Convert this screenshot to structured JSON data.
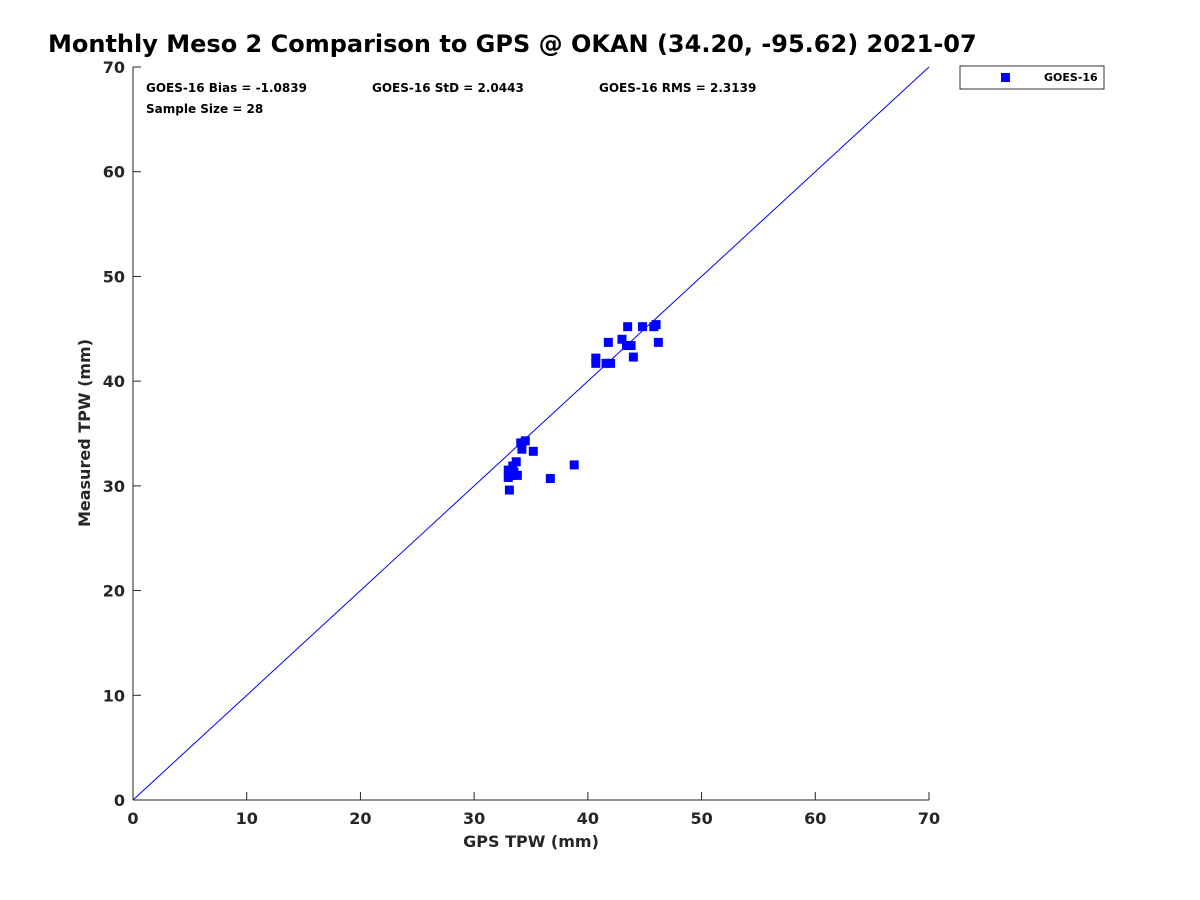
{
  "chart_data": {
    "type": "scatter",
    "title": "Monthly Meso 2 Comparison to GPS @ OKAN (34.20, -95.62) 2021-07",
    "xlabel": "GPS TPW (mm)",
    "ylabel": "Measured TPW (mm)",
    "xlim": [
      0,
      70
    ],
    "ylim": [
      0,
      70
    ],
    "xticks": [
      "0",
      "10",
      "20",
      "30",
      "40",
      "50",
      "60",
      "70"
    ],
    "yticks": [
      "0",
      "10",
      "20",
      "30",
      "40",
      "50",
      "60",
      "70"
    ],
    "grid": false,
    "legend_position": "top-right, outside plot",
    "reference_line": {
      "name": "1:1 line",
      "x": [
        0,
        70
      ],
      "y": [
        0,
        70
      ],
      "color": "#0000ff"
    },
    "stats": {
      "bias": "GOES-16 Bias = -1.0839",
      "std": "GOES-16 StD = 2.0443",
      "rms": "GOES-16 RMS = 2.3139",
      "sample": "Sample Size = 28"
    },
    "series": [
      {
        "name": "GOES-16",
        "color": "#0000ff",
        "marker": "square",
        "points": [
          [
            33.1,
            29.6
          ],
          [
            33.0,
            30.8
          ],
          [
            33.3,
            31.0
          ],
          [
            33.5,
            31.3
          ],
          [
            33.8,
            31.0
          ],
          [
            33.0,
            31.5
          ],
          [
            33.4,
            31.9
          ],
          [
            33.7,
            32.3
          ],
          [
            34.2,
            33.5
          ],
          [
            35.2,
            33.3
          ],
          [
            34.1,
            34.1
          ],
          [
            34.5,
            34.3
          ],
          [
            36.7,
            30.7
          ],
          [
            38.8,
            32.0
          ],
          [
            40.7,
            41.7
          ],
          [
            40.7,
            42.2
          ],
          [
            41.6,
            41.7
          ],
          [
            42.0,
            41.7
          ],
          [
            41.8,
            43.7
          ],
          [
            43.0,
            44.0
          ],
          [
            43.4,
            43.4
          ],
          [
            43.8,
            43.4
          ],
          [
            44.0,
            42.3
          ],
          [
            43.5,
            45.2
          ],
          [
            44.8,
            45.2
          ],
          [
            45.8,
            45.2
          ],
          [
            46.0,
            45.4
          ],
          [
            46.2,
            43.7
          ]
        ]
      }
    ]
  }
}
